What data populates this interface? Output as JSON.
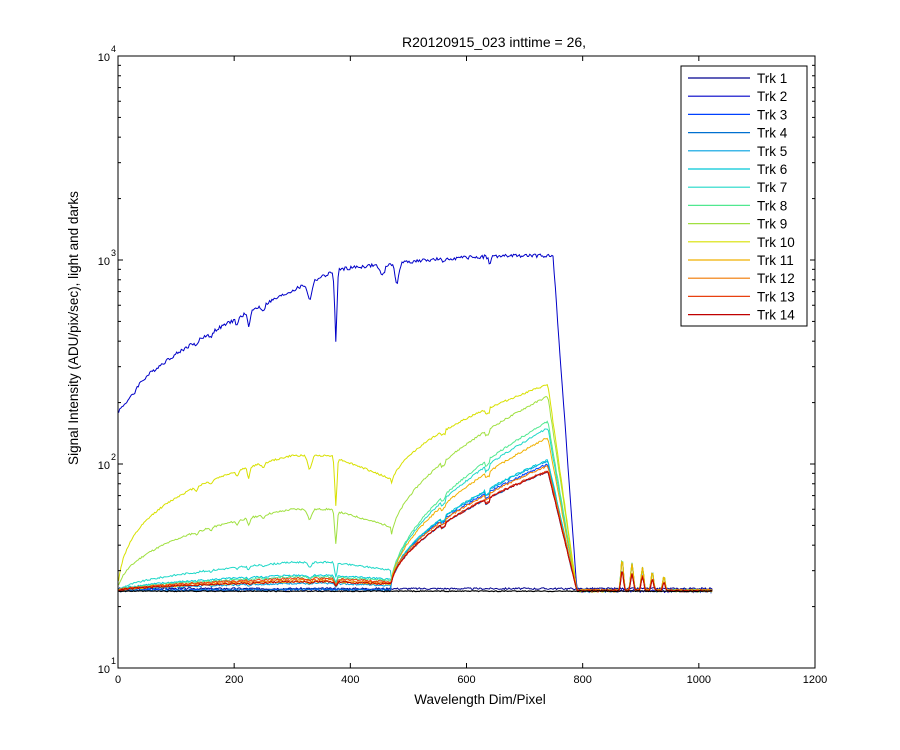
{
  "chart_data": {
    "type": "line",
    "title": "R20120915_023 inttime = 26,",
    "xlabel": "Wavelength Dim/Pixel",
    "ylabel": "Signal Intensity (ADU/pix/sec), light and darks",
    "xlim": [
      0,
      1200
    ],
    "ylim": [
      10,
      10000
    ],
    "yscale": "log",
    "x_ticks": [
      "0",
      "200",
      "400",
      "600",
      "800",
      "1000",
      "1200"
    ],
    "y_ticks": [
      {
        "base": "10",
        "exp": "1"
      },
      {
        "base": "10",
        "exp": "2"
      },
      {
        "base": "10",
        "exp": "3"
      },
      {
        "base": "10",
        "exp": "4"
      }
    ],
    "grid": false,
    "legend_position": "top-right",
    "series": [
      {
        "name": "Trk 1",
        "color": "#00008f",
        "plateau": 24.5,
        "jump": 24.5,
        "ramp": 1
      },
      {
        "name": "Trk 2",
        "color": "#0000c8",
        "plateau": 24,
        "jump": 24,
        "ramp": 96,
        "peak": 1050,
        "high": true
      },
      {
        "name": "Trk 3",
        "color": "#0040ff",
        "plateau": 24.2,
        "jump": 24.2,
        "ramp": 100
      },
      {
        "name": "Trk 4",
        "color": "#0070d0",
        "plateau": 24.3,
        "jump": 24.3,
        "ramp": 92
      },
      {
        "name": "Trk 5",
        "color": "#00a0e0",
        "plateau": 26,
        "jump": 26,
        "ramp": 104
      },
      {
        "name": "Trk 6",
        "color": "#00c8d8",
        "plateau": 28.5,
        "jump": 28.5,
        "ramp": 105
      },
      {
        "name": "Trk 7",
        "color": "#20d8c8",
        "plateau": 33,
        "jump": 33,
        "ramp": 150
      },
      {
        "name": "Trk 8",
        "color": "#50e890",
        "plateau": 28,
        "jump": 28,
        "ramp": 162
      },
      {
        "name": "Trk 9",
        "color": "#a0e040",
        "plateau": 60,
        "jump": 60,
        "ramp": 215
      },
      {
        "name": "Trk 10",
        "color": "#d8e000",
        "plateau": 110,
        "jump": 110,
        "ramp": 245
      },
      {
        "name": "Trk 11",
        "color": "#f0b000",
        "plateau": 26.5,
        "jump": 26.5,
        "ramp": 135
      },
      {
        "name": "Trk 12",
        "color": "#f07800",
        "plateau": 27,
        "jump": 27,
        "ramp": 98
      },
      {
        "name": "Trk 13",
        "color": "#e84010",
        "plateau": 27.5,
        "jump": 27.5,
        "ramp": 93
      },
      {
        "name": "Trk 14",
        "color": "#c00000",
        "plateau": 26.5,
        "jump": 26.5,
        "ramp": 92
      }
    ],
    "dark_floor": 23.8
  }
}
